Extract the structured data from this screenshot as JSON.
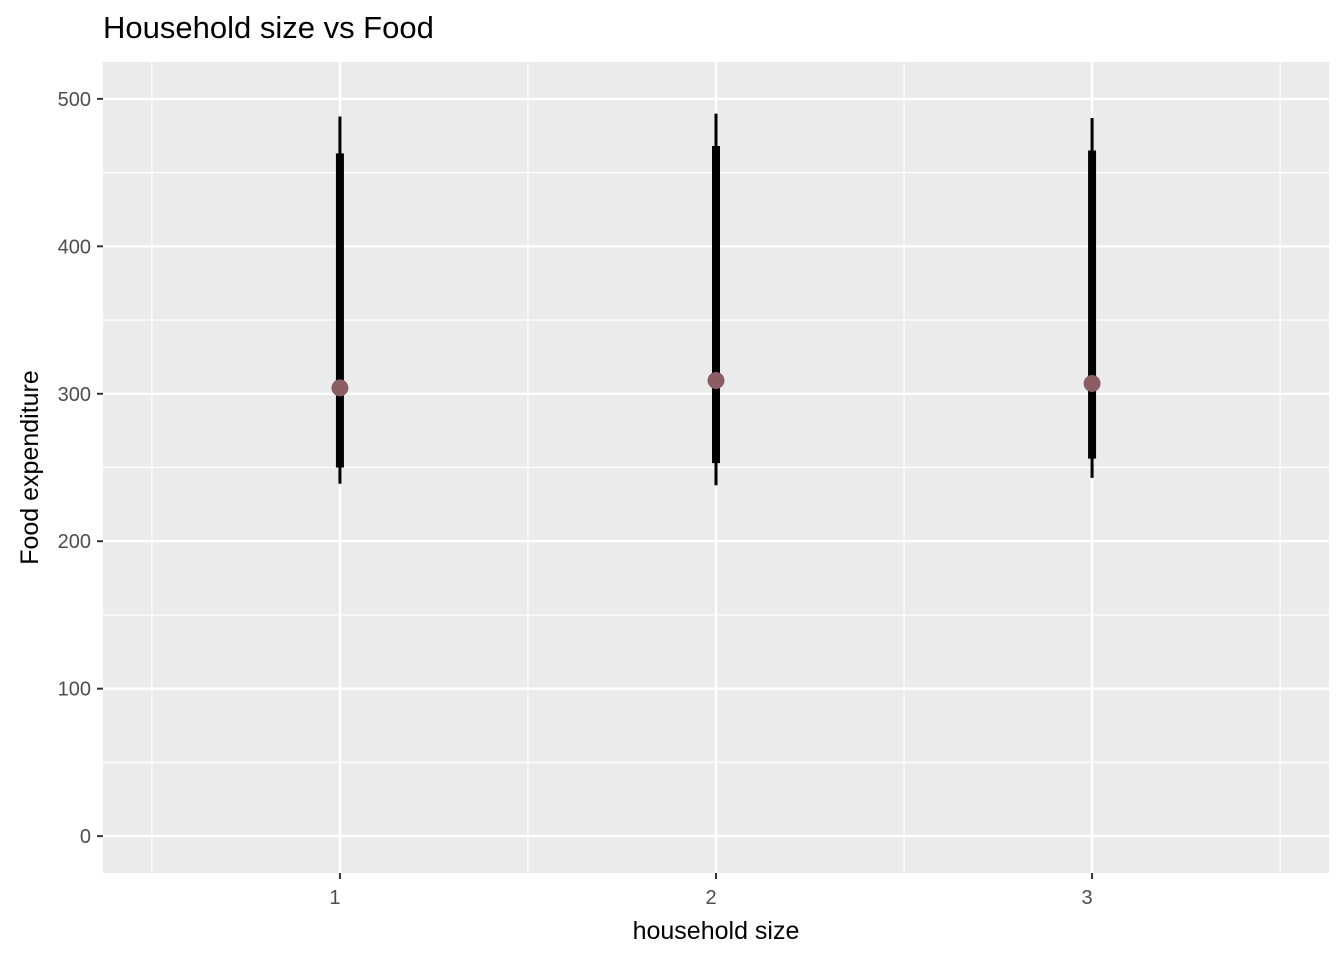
{
  "chart_data": {
    "type": "pointrange",
    "title": "Household size vs Food",
    "xlabel": "household size",
    "ylabel": "Food expenditure",
    "categories": [
      "1",
      "2",
      "3"
    ],
    "series": [
      {
        "points": [
          {
            "x": "1",
            "y": 304,
            "inner_low": 250,
            "inner_high": 463,
            "outer_low": 239,
            "outer_high": 488
          },
          {
            "x": "2",
            "y": 309,
            "inner_low": 253,
            "inner_high": 468,
            "outer_low": 238,
            "outer_high": 490
          },
          {
            "x": "3",
            "y": 307,
            "inner_low": 256,
            "inner_high": 465,
            "outer_low": 243,
            "outer_high": 487
          }
        ]
      }
    ],
    "ylim": [
      -25,
      525
    ],
    "yticks": [
      0,
      100,
      200,
      300,
      400,
      500
    ],
    "grid": true,
    "legend": "none",
    "colors": {
      "panel_background": "#ebebeb",
      "grid_major": "#ffffff",
      "point": "#8b5e66",
      "interval": "#000000",
      "tick_label": "#4d4d4d"
    }
  }
}
